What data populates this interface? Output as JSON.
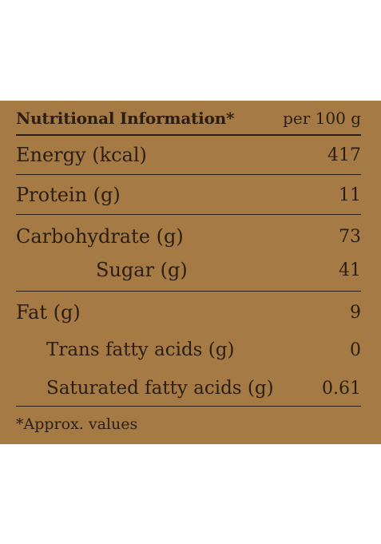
{
  "label": {
    "title": "Nutritional Information*",
    "unit": "per 100 g",
    "rows": [
      {
        "name": "Energy (kcal)",
        "value": "417"
      },
      {
        "name": "Protein (g)",
        "value": "11"
      },
      {
        "name": "Carbohydrate (g)",
        "value": "73"
      },
      {
        "name": "Sugar (g)",
        "value": "41"
      },
      {
        "name": "Fat (g)",
        "value": "9"
      },
      {
        "name": "Trans fatty acids (g)",
        "value": "0"
      },
      {
        "name": "Saturated fatty acids (g)",
        "value": "0.61"
      }
    ],
    "footnote": "*Approx. values"
  },
  "colors": {
    "background": "#a57a45",
    "text": "#2a1e10"
  }
}
